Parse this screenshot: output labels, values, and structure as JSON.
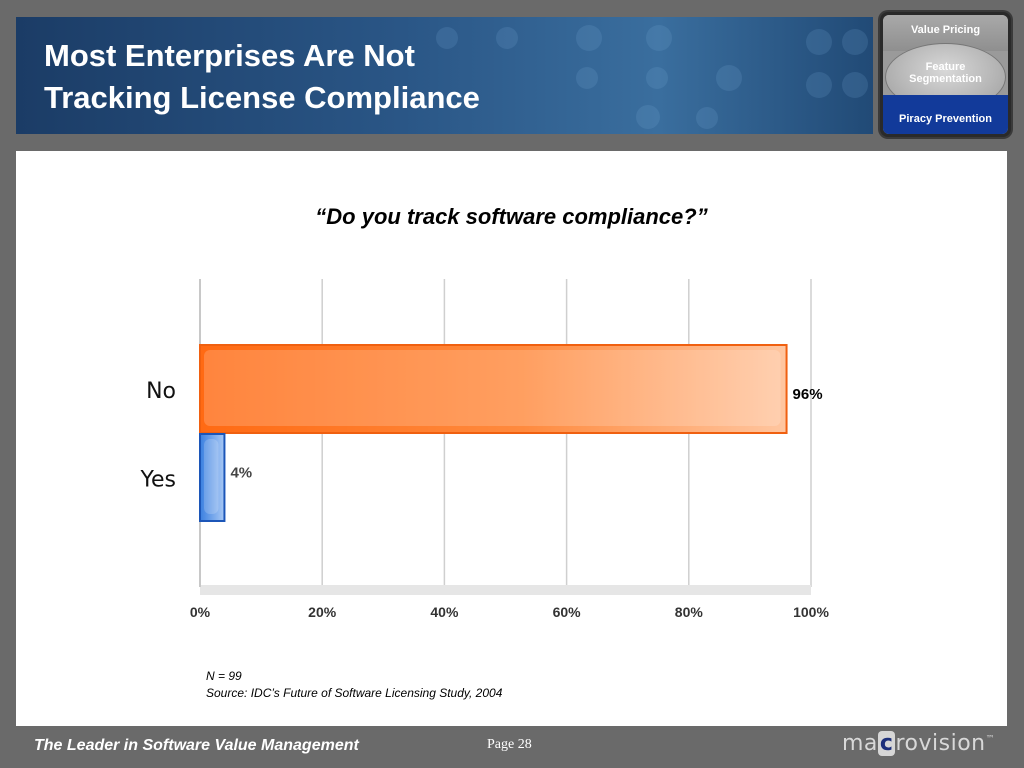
{
  "header": {
    "title_line1": "Most Enterprises Are Not",
    "title_line2": "Tracking License Compliance"
  },
  "nav": {
    "items": [
      "Value Pricing",
      "Feature Segmentation",
      "Piracy Prevention"
    ],
    "active": "Piracy Prevention"
  },
  "colors": {
    "no_bar": "#ff6a13",
    "yes_bar": "#2f6fd1",
    "header": "#1f4472",
    "nav_active": "#123a9a"
  },
  "chart_data": {
    "type": "bar",
    "orientation": "horizontal",
    "title": "“Do you track software compliance?”",
    "categories": [
      "No",
      "Yes"
    ],
    "values": [
      96,
      4
    ],
    "data_labels": [
      "96%",
      "4%"
    ],
    "xlim": [
      0,
      100
    ],
    "x_ticks": [
      "0%",
      "20%",
      "40%",
      "60%",
      "80%",
      "100%"
    ],
    "grid": true,
    "legend": "none"
  },
  "notes": {
    "n": "N = 99",
    "source": "Source: IDC’s Future of Software Licensing Study, 2004"
  },
  "footer": {
    "tagline": "The Leader in Software Value Management",
    "page": "Page 28",
    "logo_pre": "ma",
    "logo_c": "c",
    "logo_post": "rovision",
    "logo_tm": "™"
  }
}
